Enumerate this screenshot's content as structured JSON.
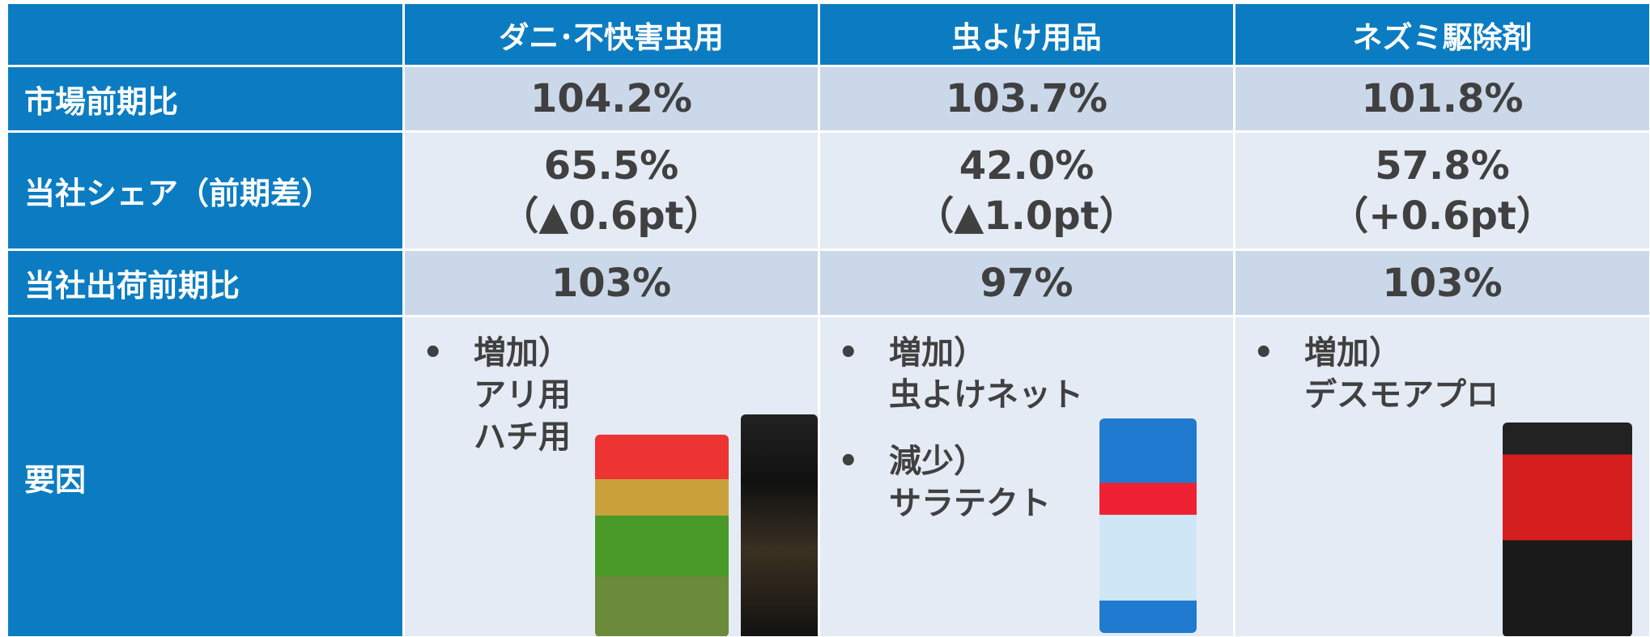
{
  "table": {
    "columns": [
      "ダニ･不快害虫用",
      "虫よけ用品",
      "ネズミ駆除剤"
    ],
    "rows": [
      {
        "label": "市場前期比",
        "cells": [
          [
            "104.2%"
          ],
          [
            "103.7%"
          ],
          [
            "101.8%"
          ]
        ]
      },
      {
        "label": "当社シェア（前期差）",
        "cells": [
          [
            "65.5%",
            "（▲0.6pt）"
          ],
          [
            "42.0%",
            "（▲1.0pt）"
          ],
          [
            "57.8%",
            "（+0.6pt）"
          ]
        ]
      },
      {
        "label": "当社出荷前期比",
        "cells": [
          [
            "103%"
          ],
          [
            "97%"
          ],
          [
            "103%"
          ]
        ]
      }
    ],
    "factors": {
      "label": "要因",
      "cells": [
        [
          {
            "heading": "増加）",
            "items": [
              "アリ用",
              "ハチ用"
            ]
          }
        ],
        [
          {
            "heading": "増加）",
            "items": [
              "虫よけネット"
            ]
          },
          {
            "heading": "減少）",
            "items": [
              "サラテクト"
            ]
          }
        ],
        [
          {
            "heading": "増加）",
            "items": [
              "デスモアプロ"
            ]
          }
        ]
      ]
    }
  }
}
